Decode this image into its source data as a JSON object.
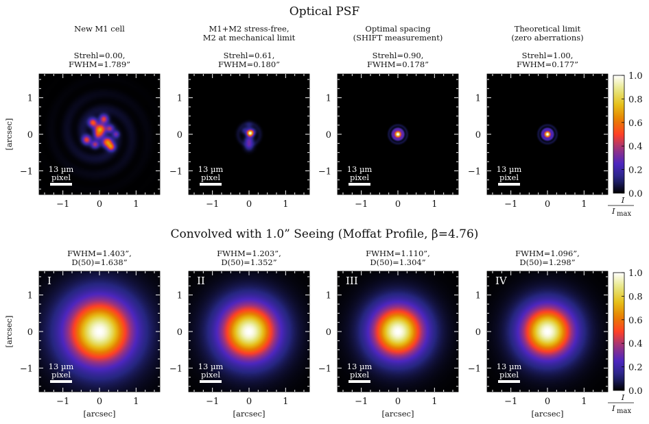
{
  "chart_data": {
    "type": "heatmap",
    "colormap": "CMRmap",
    "colorbar": {
      "label_num": "I",
      "label_den": "I",
      "label_den_sub": "max",
      "ticks": [
        "0.0",
        "0.2",
        "0.4",
        "0.6",
        "0.8",
        "1.0"
      ],
      "range": [
        0,
        1
      ]
    },
    "axes": {
      "xlim": [
        -1.65,
        1.65
      ],
      "ylim": [
        -1.65,
        1.65
      ],
      "xticks": [
        "−1",
        "0",
        "1"
      ],
      "yticks": [
        "1",
        "0",
        "−1"
      ],
      "xlabel": "[arcsec]",
      "ylabel": "[arcsec]"
    },
    "scale_bar": {
      "line1": "13 µm",
      "line2": "pixel"
    },
    "rows": [
      {
        "title": "Optical PSF",
        "panels": [
          {
            "heading": [
              "New M1 cell",
              ""
            ],
            "stats": [
              "Strehl=0.00,",
              "FWHM=1.789”"
            ],
            "roman": "",
            "psf": {
              "kind": "aberrated",
              "strehl": 0.0,
              "fwhm_arcsec": 1.789
            }
          },
          {
            "heading": [
              "M1+M2 stress-free,",
              "M2 at mechanical limit"
            ],
            "stats": [
              "Strehl=0.61,",
              "FWHM=0.180”"
            ],
            "roman": "",
            "psf": {
              "kind": "partial",
              "strehl": 0.61,
              "fwhm_arcsec": 0.18
            }
          },
          {
            "heading": [
              "Optimal spacing",
              "(SHIFT measurement)"
            ],
            "stats": [
              "Strehl=0.90,",
              "FWHM=0.178”"
            ],
            "roman": "",
            "psf": {
              "kind": "airy",
              "strehl": 0.9,
              "fwhm_arcsec": 0.178
            }
          },
          {
            "heading": [
              "Theoretical limit",
              "(zero aberrations)"
            ],
            "stats": [
              "Strehl=1.00,",
              "FWHM=0.177”"
            ],
            "roman": "",
            "psf": {
              "kind": "airy",
              "strehl": 1.0,
              "fwhm_arcsec": 0.177
            }
          }
        ]
      },
      {
        "title": "Convolved with 1.0” Seeing (Moffat Profile, β=4.76)",
        "panels": [
          {
            "heading": [
              "",
              ""
            ],
            "stats": [
              "FWHM=1.403”,",
              "D(50)=1.638”"
            ],
            "roman": "I",
            "psf": {
              "kind": "moffat",
              "fwhm_arcsec": 1.403,
              "d50_arcsec": 1.638,
              "beta": 4.76
            }
          },
          {
            "heading": [
              "",
              ""
            ],
            "stats": [
              "FWHM=1.203”,",
              "D(50)=1.352”"
            ],
            "roman": "II",
            "psf": {
              "kind": "moffat",
              "fwhm_arcsec": 1.203,
              "d50_arcsec": 1.352,
              "beta": 4.76
            }
          },
          {
            "heading": [
              "",
              ""
            ],
            "stats": [
              "FWHM=1.110”,",
              "D(50)=1.304”"
            ],
            "roman": "III",
            "psf": {
              "kind": "moffat",
              "fwhm_arcsec": 1.11,
              "d50_arcsec": 1.304,
              "beta": 4.76
            }
          },
          {
            "heading": [
              "",
              ""
            ],
            "stats": [
              "FWHM=1.096”,",
              "D(50)=1.298”"
            ],
            "roman": "IV",
            "psf": {
              "kind": "moffat",
              "fwhm_arcsec": 1.096,
              "d50_arcsec": 1.298,
              "beta": 4.76
            }
          }
        ]
      }
    ]
  }
}
